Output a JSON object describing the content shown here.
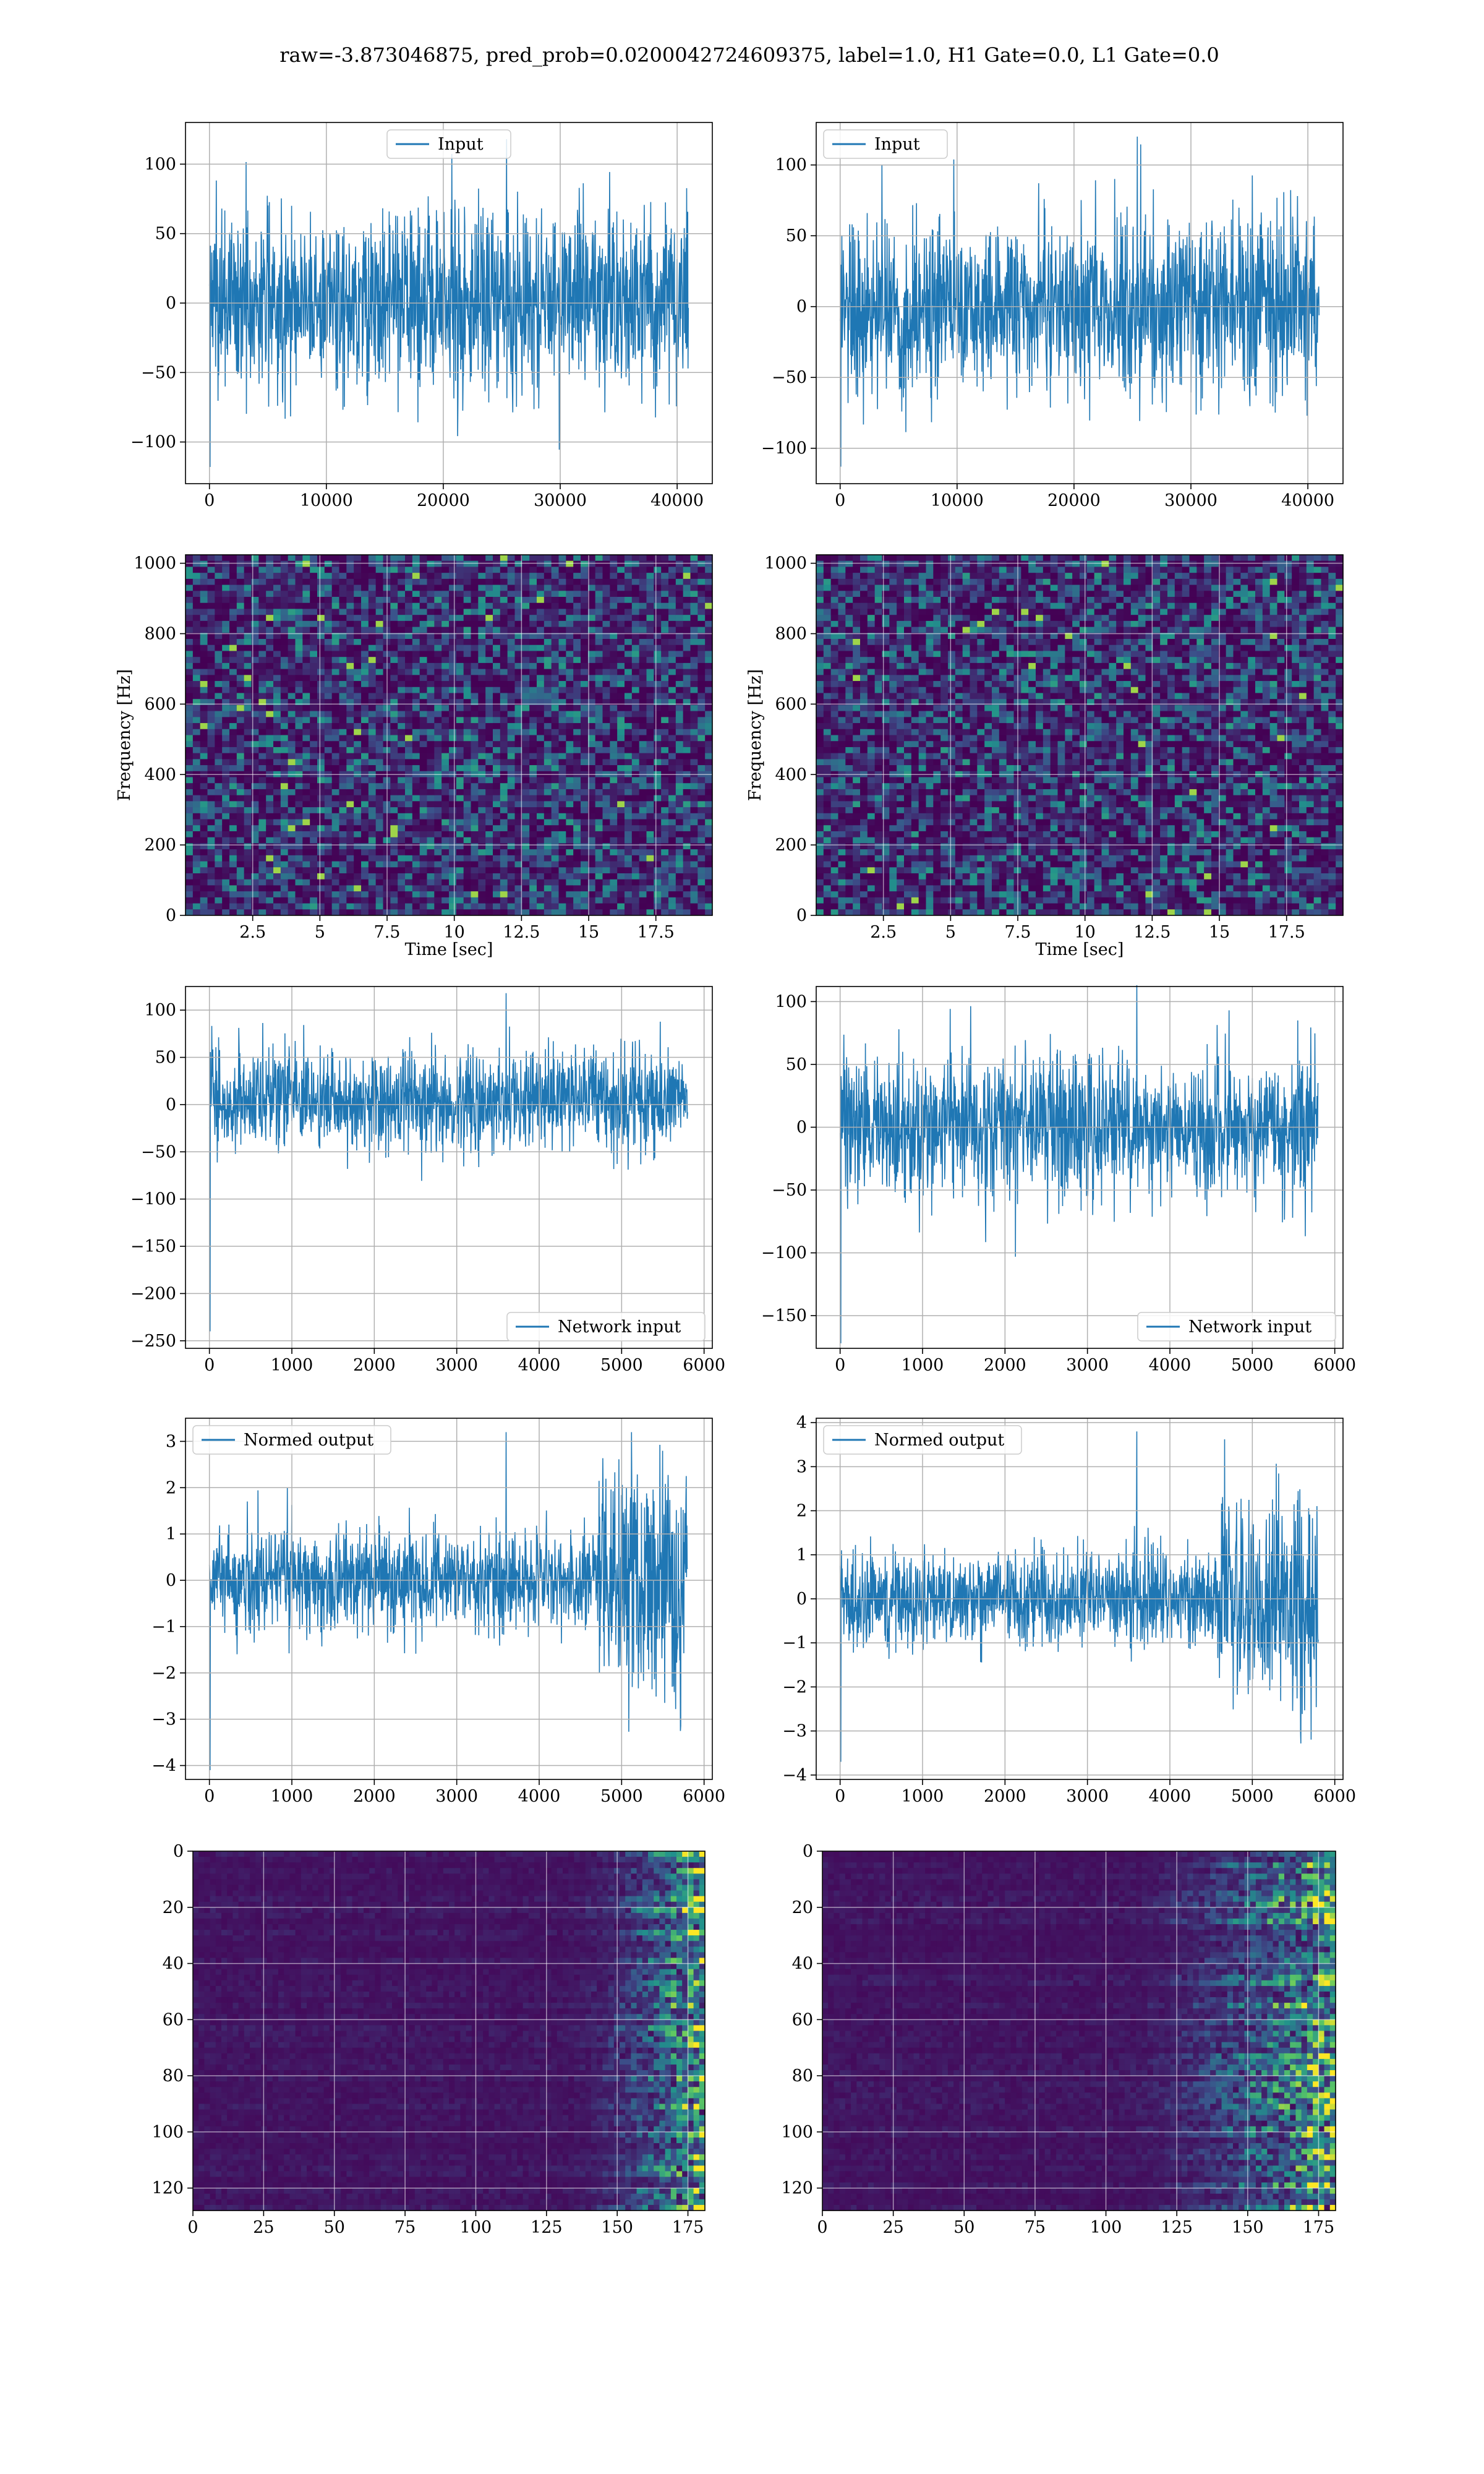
{
  "figure": {
    "title": "raw=-3.873046875, pred_prob=0.0200042724609375, label=1.0, H1 Gate=0.0, L1 Gate=0.0",
    "colors": {
      "line": "#1f77b4",
      "grid": "#b0b0b0",
      "viridis_dark": "#440154",
      "viridis_mid": "#21918c",
      "viridis_bright": "#fde725"
    }
  },
  "chart_data": [
    {
      "id": "h1-input",
      "type": "line",
      "series_name": "Input",
      "legend_loc": "upper center",
      "xlim": [
        -2048,
        43008
      ],
      "ylim": [
        -130,
        130
      ],
      "xticks": [
        0,
        10000,
        20000,
        30000,
        40000
      ],
      "yticks": [
        -100,
        -50,
        0,
        50,
        100
      ],
      "x_range": [
        0,
        40960
      ],
      "band": [
        -58,
        62
      ],
      "extremes": [
        -118,
        118
      ],
      "grid": true
    },
    {
      "id": "l1-input",
      "type": "line",
      "series_name": "Input",
      "legend_loc": "upper left",
      "xlim": [
        -2048,
        43008
      ],
      "ylim": [
        -125,
        130
      ],
      "xticks": [
        0,
        10000,
        20000,
        30000,
        40000
      ],
      "yticks": [
        -100,
        -50,
        0,
        50,
        100
      ],
      "x_range": [
        0,
        40960
      ],
      "band": [
        -57,
        57
      ],
      "extremes": [
        -113,
        120
      ],
      "grid": true
    },
    {
      "id": "h1-spectrogram",
      "type": "heatmap",
      "colormap": "viridis",
      "xlim": [
        0,
        19.6
      ],
      "ylim": [
        0,
        1024
      ],
      "xticks": [
        2.5,
        5.0,
        7.5,
        10.0,
        12.5,
        15.0,
        17.5
      ],
      "yticks": [
        0,
        200,
        400,
        600,
        800,
        1000
      ],
      "xlabel": "Time [sec]",
      "ylabel": "Frequency [Hz]",
      "grid": true
    },
    {
      "id": "l1-spectrogram",
      "type": "heatmap",
      "colormap": "viridis",
      "xlim": [
        0,
        19.6
      ],
      "ylim": [
        0,
        1024
      ],
      "xticks": [
        2.5,
        5.0,
        7.5,
        10.0,
        12.5,
        15.0,
        17.5
      ],
      "yticks": [
        0,
        200,
        400,
        600,
        800,
        1000
      ],
      "xlabel": "Time [sec]",
      "ylabel": "Frequency [Hz]",
      "grid": true
    },
    {
      "id": "h1-network-input",
      "type": "line",
      "series_name": "Network input",
      "legend_loc": "lower right",
      "xlim": [
        -290,
        6100
      ],
      "ylim": [
        -258,
        125
      ],
      "xticks": [
        0,
        1000,
        2000,
        3000,
        4000,
        5000,
        6000
      ],
      "yticks": [
        -250,
        -200,
        -150,
        -100,
        -50,
        0,
        50,
        100
      ],
      "x_range": [
        0,
        5800
      ],
      "band": [
        -45,
        55
      ],
      "extremes": [
        -240,
        118
      ],
      "grid": true
    },
    {
      "id": "l1-network-input",
      "type": "line",
      "series_name": "Network input",
      "legend_loc": "lower right",
      "xlim": [
        -290,
        6100
      ],
      "ylim": [
        -176,
        112
      ],
      "xticks": [
        0,
        1000,
        2000,
        3000,
        4000,
        5000,
        6000
      ],
      "yticks": [
        -150,
        -100,
        -50,
        0,
        50,
        100
      ],
      "x_range": [
        0,
        5800
      ],
      "band": [
        -52,
        52
      ],
      "extremes": [
        -172,
        113
      ],
      "grid": true
    },
    {
      "id": "h1-normed-output",
      "type": "line",
      "series_name": "Normed output",
      "legend_loc": "upper left",
      "xlim": [
        -290,
        6100
      ],
      "ylim": [
        -4.3,
        3.5
      ],
      "xticks": [
        0,
        1000,
        2000,
        3000,
        4000,
        5000,
        6000
      ],
      "yticks": [
        -4,
        -3,
        -2,
        -1,
        0,
        1,
        2,
        3
      ],
      "x_range": [
        0,
        5800
      ],
      "band": [
        -1.0,
        1.0
      ],
      "extremes": [
        -4.1,
        3.2
      ],
      "grid": true,
      "burst": {
        "from": 4700,
        "to": 5800,
        "amplitude": 2.3
      }
    },
    {
      "id": "l1-normed-output",
      "type": "line",
      "series_name": "Normed output",
      "legend_loc": "upper left",
      "xlim": [
        -290,
        6100
      ],
      "ylim": [
        -4.1,
        4.1
      ],
      "xticks": [
        0,
        1000,
        2000,
        3000,
        4000,
        5000,
        6000
      ],
      "yticks": [
        -4,
        -3,
        -2,
        -1,
        0,
        1,
        2,
        3,
        4
      ],
      "x_range": [
        0,
        5800
      ],
      "band": [
        -1.0,
        1.0
      ],
      "extremes": [
        -3.7,
        3.8
      ],
      "grid": true,
      "burst": {
        "from": 4600,
        "to": 5800,
        "amplitude": 2.2
      }
    },
    {
      "id": "h1-feature-map",
      "type": "heatmap",
      "colormap": "viridis",
      "xlim": [
        0,
        181
      ],
      "ylim": [
        128,
        0
      ],
      "xticks": [
        0,
        25,
        50,
        75,
        100,
        125,
        150,
        175
      ],
      "yticks": [
        0,
        20,
        40,
        60,
        80,
        100,
        120
      ],
      "grid": true,
      "activation_onset": 130
    },
    {
      "id": "l1-feature-map",
      "type": "heatmap",
      "colormap": "viridis",
      "xlim": [
        0,
        181
      ],
      "ylim": [
        128,
        0
      ],
      "xticks": [
        0,
        25,
        50,
        75,
        100,
        125,
        150,
        175
      ],
      "yticks": [
        0,
        20,
        40,
        60,
        80,
        100,
        120
      ],
      "grid": true,
      "activation_onset": 100
    }
  ]
}
